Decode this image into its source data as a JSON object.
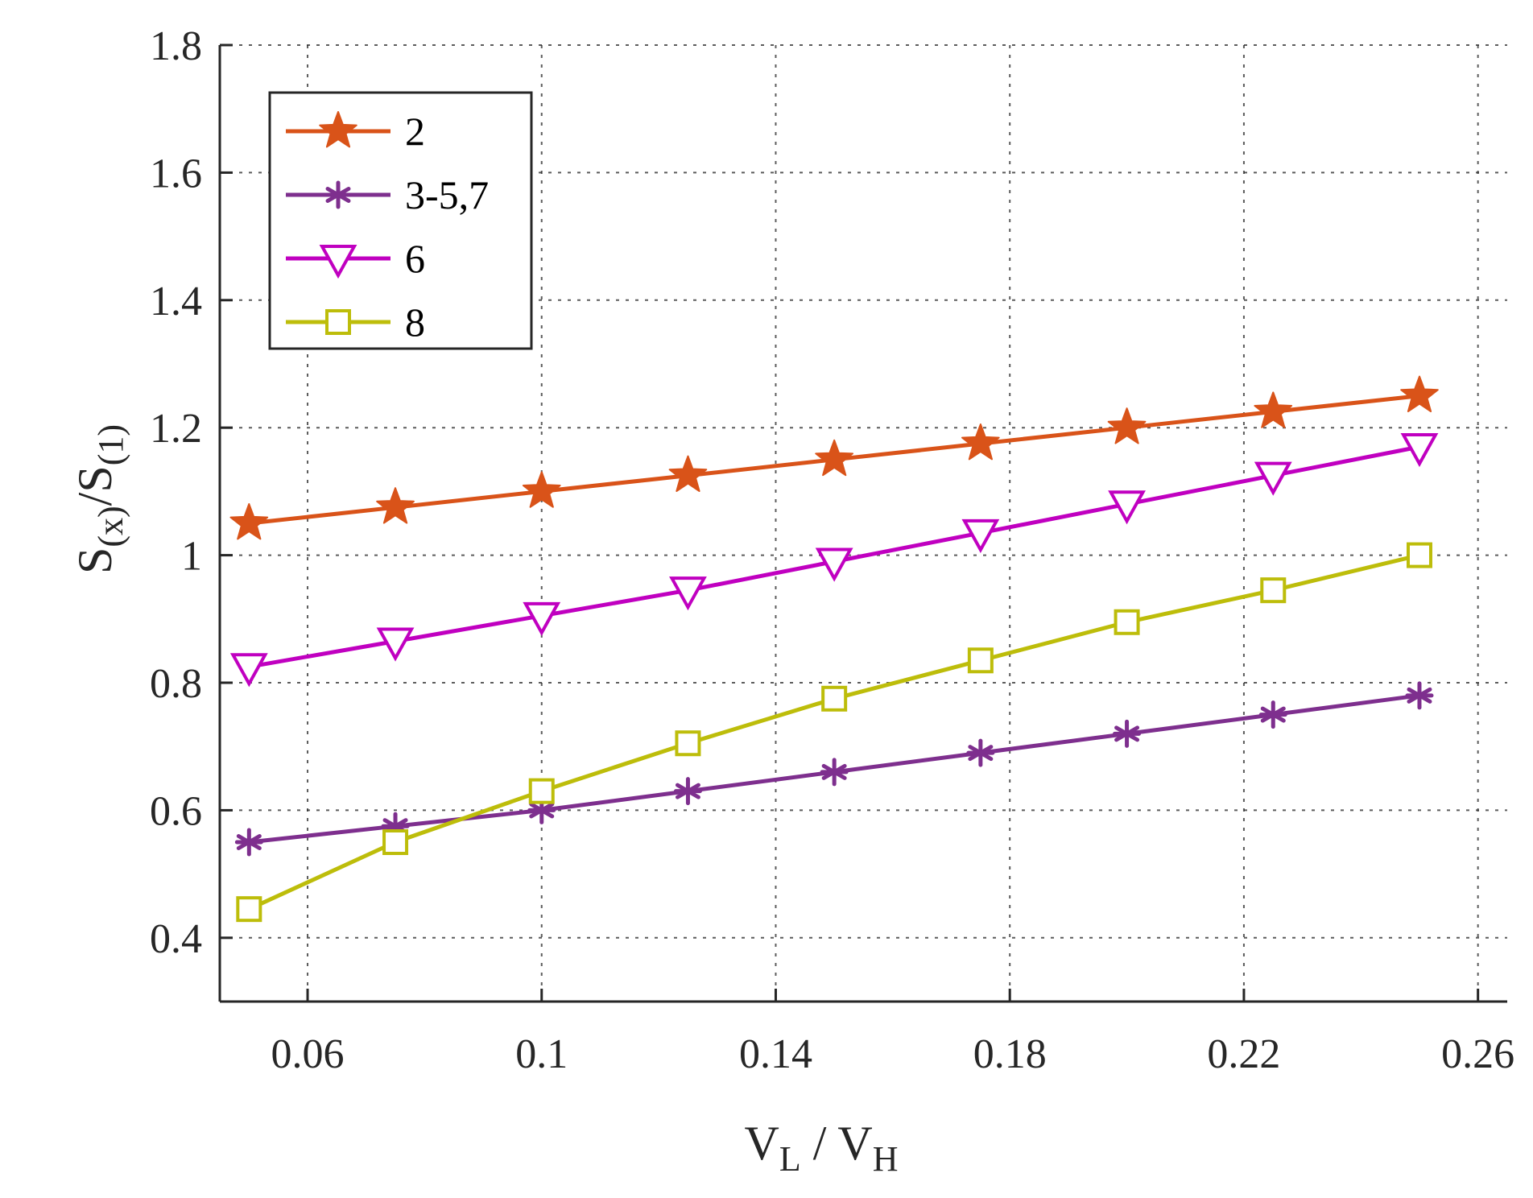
{
  "chart_data": {
    "type": "line",
    "title": "",
    "xlabel": {
      "main": "V",
      "sub1": "L",
      "sep": " / V",
      "sub2": "H"
    },
    "ylabel": {
      "main1": "S",
      "sub1": "(x)",
      "sep": "/",
      "main2": "S",
      "sub2": "(1)"
    },
    "xlim": [
      0.045,
      0.265
    ],
    "ylim": [
      0.3,
      1.8
    ],
    "xticks": [
      0.06,
      0.1,
      0.14,
      0.18,
      0.22,
      0.26
    ],
    "xtick_labels": [
      "0.06",
      "0.1",
      "0.14",
      "0.18",
      "0.22",
      "0.26"
    ],
    "yticks": [
      0.4,
      0.6,
      0.8,
      1.0,
      1.2,
      1.4,
      1.6,
      1.8
    ],
    "ytick_labels": [
      "0.4",
      "0.6",
      "0.8",
      "1",
      "1.2",
      "1.4",
      "1.6",
      "1.8"
    ],
    "grid": true,
    "legend_position": "top-left",
    "x": [
      0.05,
      0.075,
      0.1,
      0.125,
      0.15,
      0.175,
      0.2,
      0.225,
      0.25
    ],
    "series": [
      {
        "name": "2",
        "color": "#D95319",
        "marker": "star",
        "values": [
          1.05,
          1.075,
          1.1,
          1.125,
          1.15,
          1.175,
          1.2,
          1.225,
          1.25
        ]
      },
      {
        "name": "3-5,7",
        "color": "#7E2F8E",
        "marker": "asterisk",
        "values": [
          0.55,
          0.575,
          0.6,
          0.63,
          0.66,
          0.69,
          0.72,
          0.75,
          0.78
        ]
      },
      {
        "name": "6",
        "color": "#C000C0",
        "marker": "triangle-down",
        "values": [
          0.825,
          0.865,
          0.905,
          0.945,
          0.99,
          1.035,
          1.08,
          1.125,
          1.17
        ]
      },
      {
        "name": "8",
        "color": "#BDBD0A",
        "marker": "square",
        "values": [
          0.445,
          0.55,
          0.63,
          0.705,
          0.775,
          0.835,
          0.895,
          0.945,
          1.0
        ]
      }
    ]
  }
}
